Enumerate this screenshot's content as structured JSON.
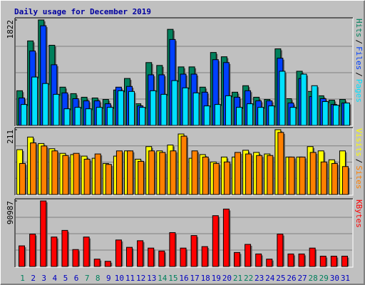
{
  "chart_data": [
    {
      "type": "bar",
      "title": "Daily usage for December 2019",
      "legend_separator": "/",
      "series": [
        {
          "name": "Hits",
          "color": "#00805c",
          "values": [
            599,
            1460,
            1822,
            1385,
            661,
            549,
            487,
            474,
            449,
            612,
            811,
            374,
            1086,
            1036,
            1660,
            1011,
            1011,
            661,
            1260,
            1186,
            574,
            686,
            487,
            449,
            1323,
            462,
            936,
            587,
            512,
            437,
            449
          ]
        },
        {
          "name": "Files",
          "color": "#0040ff",
          "values": [
            474,
            1285,
            1722,
            1048,
            562,
            462,
            424,
            424,
            374,
            661,
            674,
            337,
            874,
            874,
            1485,
            886,
            886,
            574,
            1136,
            1086,
            487,
            599,
            424,
            424,
            1161,
            387,
            811,
            499,
            462,
            362,
            387
          ]
        },
        {
          "name": "Pages",
          "color": "#00e0ff",
          "values": [
            362,
            836,
            724,
            537,
            287,
            312,
            287,
            312,
            312,
            599,
            587,
            312,
            599,
            537,
            774,
            649,
            562,
            337,
            362,
            512,
            312,
            374,
            312,
            337,
            936,
            312,
            886,
            686,
            412,
            349,
            387
          ]
        }
      ],
      "ylim": [
        0,
        1822
      ],
      "yticks": [
        1822
      ]
    },
    {
      "type": "bar",
      "legend_separator": "/",
      "series": [
        {
          "name": "Visits",
          "color": "#ffff00",
          "values": [
            146,
            187,
            166,
            149,
            134,
            130,
            125,
            118,
            101,
            125,
            142,
            115,
            156,
            142,
            161,
            197,
            118,
            130,
            106,
            122,
            122,
            144,
            137,
            132,
            211,
            122,
            122,
            156,
            142,
            113,
            142
          ]
        },
        {
          "name": "Sites",
          "color": "#ff8000",
          "values": [
            101,
            168,
            158,
            142,
            127,
            134,
            115,
            132,
            98,
            142,
            142,
            108,
            142,
            137,
            142,
            190,
            142,
            122,
            101,
            106,
            137,
            132,
            127,
            127,
            202,
            122,
            122,
            137,
            106,
            101,
            91
          ]
        }
      ],
      "ylim": [
        0,
        211
      ],
      "yticks": [
        211
      ]
    },
    {
      "type": "bar",
      "categories": [
        "1",
        "2",
        "3",
        "4",
        "5",
        "6",
        "7",
        "8",
        "9",
        "10",
        "11",
        "12",
        "13",
        "14",
        "15",
        "16",
        "17",
        "18",
        "19",
        "20",
        "21",
        "22",
        "23",
        "24",
        "25",
        "26",
        "27",
        "28",
        "29",
        "30",
        "31"
      ],
      "category_colors": [
        "#00805c",
        "#0000c0",
        "#0000c0",
        "#0000c0",
        "#0000c0",
        "#0000c0",
        "#00805c",
        "#00805c",
        "#0000c0",
        "#0000c0",
        "#0000c0",
        "#0000c0",
        "#0000c0",
        "#00805c",
        "#00805c",
        "#0000c0",
        "#0000c0",
        "#0000c0",
        "#0000c0",
        "#0000c0",
        "#00805c",
        "#00805c",
        "#0000c0",
        "#0000c0",
        "#0000c0",
        "#0000c0",
        "#0000c0",
        "#00805c",
        "#00805c",
        "#0000c0",
        "#0000c0"
      ],
      "series": [
        {
          "name": "KBytes",
          "color": "#ff0000",
          "values": [
            28620,
            44970,
            90987,
            40880,
            50080,
            23510,
            40880,
            10220,
            7150,
            36790,
            26570,
            35770,
            25550,
            21460,
            47010,
            25550,
            42920,
            27590,
            70520,
            79710,
            19420,
            30660,
            17370,
            10220,
            44970,
            17370,
            17370,
            25550,
            14310,
            14310,
            14310
          ]
        }
      ],
      "ylim": [
        0,
        90987
      ],
      "yticks": [
        90987
      ]
    }
  ]
}
